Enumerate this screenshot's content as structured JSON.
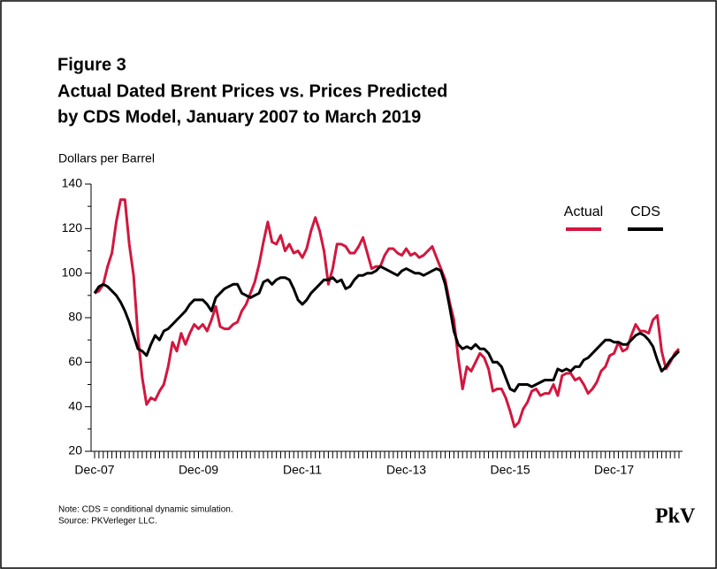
{
  "chart_data": {
    "type": "line",
    "figure": "Figure 3",
    "title": [
      "Actual Dated Brent Prices vs. Prices Predicted",
      "by CDS Model, January 2007 to March 2019"
    ],
    "y_label": "Dollars per Barrel",
    "note": "Note: CDS = conditional dynamic simulation.",
    "source": "Source: PKVerleger LLC.",
    "logo": "PkV",
    "legend": "top-right",
    "ylim": [
      20,
      140
    ],
    "yticks": [
      20,
      40,
      60,
      80,
      100,
      120,
      140
    ],
    "categories": [
      "Dec-07",
      null,
      null,
      null,
      null,
      null,
      null,
      null,
      null,
      null,
      null,
      null,
      null,
      null,
      null,
      null,
      null,
      null,
      null,
      null,
      null,
      null,
      null,
      null,
      "Dec-09",
      null,
      null,
      null,
      null,
      null,
      null,
      null,
      null,
      null,
      null,
      null,
      null,
      null,
      null,
      null,
      null,
      null,
      null,
      null,
      null,
      null,
      null,
      null,
      "Dec-11",
      null,
      null,
      null,
      null,
      null,
      null,
      null,
      null,
      null,
      null,
      null,
      null,
      null,
      null,
      null,
      null,
      null,
      null,
      null,
      null,
      null,
      null,
      null,
      "Dec-13",
      null,
      null,
      null,
      null,
      null,
      null,
      null,
      null,
      null,
      null,
      null,
      null,
      null,
      null,
      null,
      null,
      null,
      null,
      null,
      null,
      null,
      null,
      null,
      "Dec-15",
      null,
      null,
      null,
      null,
      null,
      null,
      null,
      null,
      null,
      null,
      null,
      null,
      null,
      null,
      null,
      null,
      null,
      null,
      null,
      null,
      null,
      null,
      null,
      "Dec-17",
      null,
      null,
      null,
      null,
      null,
      null,
      null,
      null,
      null,
      null,
      null,
      null,
      null,
      null,
      null
    ],
    "series": [
      {
        "name": "Actual",
        "color": "#d2173f",
        "values": [
          91,
          92,
          95,
          103,
          109,
          123,
          133,
          133,
          113,
          99,
          72,
          53,
          41,
          44,
          43,
          47,
          50,
          58,
          69,
          65,
          73,
          68,
          73,
          77,
          75,
          77,
          74,
          79,
          85,
          76,
          75,
          75,
          77,
          78,
          83,
          86,
          91,
          96,
          104,
          114,
          123,
          114,
          113,
          117,
          110,
          113,
          109,
          110,
          107,
          111,
          119,
          125,
          119,
          110,
          95,
          102,
          113,
          113,
          112,
          109,
          109,
          112,
          116,
          109,
          102,
          103,
          103,
          108,
          111,
          111,
          109,
          108,
          111,
          108,
          109,
          107,
          108,
          110,
          112,
          107,
          102,
          97,
          87,
          79,
          62,
          48,
          58,
          56,
          60,
          64,
          62,
          57,
          47,
          48,
          48,
          44,
          38,
          31,
          33,
          39,
          42,
          47,
          48,
          45,
          46,
          46,
          50,
          45,
          54,
          55,
          55,
          52,
          53,
          50,
          46,
          48,
          51,
          56,
          58,
          63,
          64,
          69,
          65,
          66,
          72,
          77,
          74,
          74,
          73,
          79,
          81,
          65,
          57,
          60,
          64,
          66
        ]
      },
      {
        "name": "CDS",
        "color": "#000000",
        "values": [
          91,
          94,
          95,
          94,
          92,
          90,
          87,
          83,
          78,
          72,
          66,
          65,
          63,
          68,
          72,
          70,
          74,
          75,
          77,
          79,
          81,
          83,
          86,
          88,
          88,
          88,
          86,
          83,
          89,
          91,
          93,
          94,
          95,
          95,
          91,
          90,
          89,
          90,
          91,
          96,
          97,
          95,
          97,
          98,
          98,
          97,
          93,
          88,
          86,
          88,
          91,
          93,
          95,
          97,
          97,
          98,
          96,
          97,
          93,
          94,
          97,
          99,
          99,
          100,
          100,
          101,
          103,
          102,
          101,
          100,
          99,
          101,
          102,
          101,
          100,
          100,
          99,
          100,
          101,
          102,
          101,
          95,
          85,
          74,
          68,
          66,
          67,
          66,
          68,
          66,
          66,
          64,
          60,
          60,
          58,
          53,
          48,
          47,
          50,
          50,
          50,
          49,
          50,
          51,
          52,
          52,
          52,
          57,
          56,
          57,
          56,
          58,
          58,
          61,
          62,
          64,
          66,
          68,
          70,
          70,
          69,
          69,
          68,
          68,
          70,
          72,
          73,
          72,
          70,
          67,
          61,
          56,
          58,
          61,
          63,
          65
        ]
      }
    ]
  }
}
